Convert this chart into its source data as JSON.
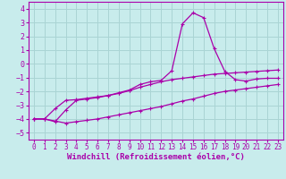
{
  "background_color": "#c8ecec",
  "grid_color": "#aad4d4",
  "line_color": "#aa00aa",
  "marker": "+",
  "xlabel": "Windchill (Refroidissement éolien,°C)",
  "xlabel_fontsize": 6.5,
  "tick_fontsize": 5.5,
  "xlim": [
    -0.5,
    23.5
  ],
  "ylim": [
    -5.5,
    4.5
  ],
  "xticks": [
    0,
    1,
    2,
    3,
    4,
    5,
    6,
    7,
    8,
    9,
    10,
    11,
    12,
    13,
    14,
    15,
    16,
    17,
    18,
    19,
    20,
    21,
    22,
    23
  ],
  "yticks": [
    -5,
    -4,
    -3,
    -2,
    -1,
    0,
    1,
    2,
    3,
    4
  ],
  "line1_x": [
    0,
    1,
    2,
    3,
    4,
    5,
    6,
    7,
    8,
    9,
    10,
    11,
    12,
    13,
    14,
    15,
    16,
    17,
    18,
    19,
    20,
    21,
    22,
    23
  ],
  "line1_y": [
    -4.0,
    -4.0,
    -4.15,
    -4.3,
    -4.2,
    -4.1,
    -4.0,
    -3.85,
    -3.7,
    -3.55,
    -3.4,
    -3.25,
    -3.1,
    -2.9,
    -2.7,
    -2.55,
    -2.35,
    -2.15,
    -2.0,
    -1.9,
    -1.8,
    -1.7,
    -1.6,
    -1.5
  ],
  "line2_x": [
    0,
    1,
    2,
    3,
    4,
    5,
    6,
    7,
    8,
    9,
    10,
    11,
    12,
    13,
    14,
    15,
    16,
    17,
    18,
    19,
    20,
    21,
    22,
    23
  ],
  "line2_y": [
    -4.0,
    -4.0,
    -4.2,
    -3.35,
    -2.65,
    -2.55,
    -2.45,
    -2.3,
    -2.15,
    -1.95,
    -1.7,
    -1.5,
    -1.3,
    -1.15,
    -1.05,
    -0.95,
    -0.85,
    -0.75,
    -0.7,
    -0.65,
    -0.6,
    -0.55,
    -0.5,
    -0.45
  ],
  "line3_x": [
    0,
    1,
    2,
    3,
    4,
    5,
    6,
    7,
    8,
    9,
    10,
    11,
    12,
    13,
    14,
    15,
    16,
    17,
    18,
    19,
    20,
    21,
    22,
    23
  ],
  "line3_y": [
    -4.0,
    -4.0,
    -3.25,
    -2.65,
    -2.6,
    -2.5,
    -2.4,
    -2.3,
    -2.1,
    -1.9,
    -1.5,
    -1.3,
    -1.2,
    -0.5,
    2.9,
    3.7,
    3.35,
    1.1,
    -0.55,
    -1.15,
    -1.25,
    -1.1,
    -1.05,
    -1.05
  ]
}
